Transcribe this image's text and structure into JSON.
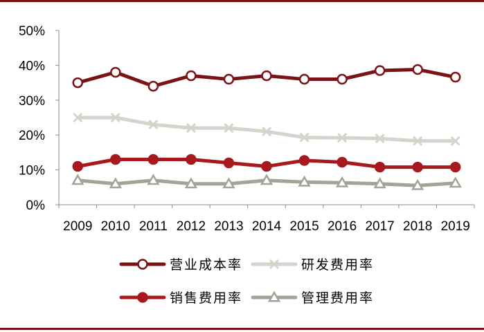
{
  "chart_data": {
    "type": "line",
    "x": [
      "2009",
      "2010",
      "2011",
      "2012",
      "2013",
      "2014",
      "2015",
      "2016",
      "2017",
      "2018",
      "2019"
    ],
    "ylim": [
      0,
      50
    ],
    "y_ticks": [
      "0%",
      "10%",
      "20%",
      "30%",
      "40%",
      "50%"
    ],
    "grid": false,
    "legend_position": "bottom",
    "series": [
      {
        "name": "营业成本率",
        "color": "#7a1216",
        "marker": "open-circle",
        "values": [
          35.0,
          38.0,
          34.0,
          37.0,
          36.0,
          37.0,
          36.0,
          36.0,
          38.5,
          38.8,
          36.6
        ]
      },
      {
        "name": "研发费用率",
        "color": "#d4d4cc",
        "marker": "x",
        "values": [
          25.0,
          25.0,
          23.0,
          22.0,
          22.0,
          21.0,
          19.3,
          19.2,
          19.0,
          18.3,
          18.3
        ]
      },
      {
        "name": "销售费用率",
        "color": "#a8191d",
        "marker": "filled-circle",
        "values": [
          11.0,
          13.0,
          13.0,
          13.0,
          12.0,
          11.0,
          12.7,
          12.2,
          10.8,
          10.8,
          10.8
        ]
      },
      {
        "name": "管理费用率",
        "color": "#a3a399",
        "marker": "open-triangle",
        "values": [
          7.0,
          6.0,
          7.0,
          6.0,
          6.0,
          7.0,
          6.5,
          6.3,
          6.0,
          5.5,
          6.2
        ]
      }
    ]
  }
}
